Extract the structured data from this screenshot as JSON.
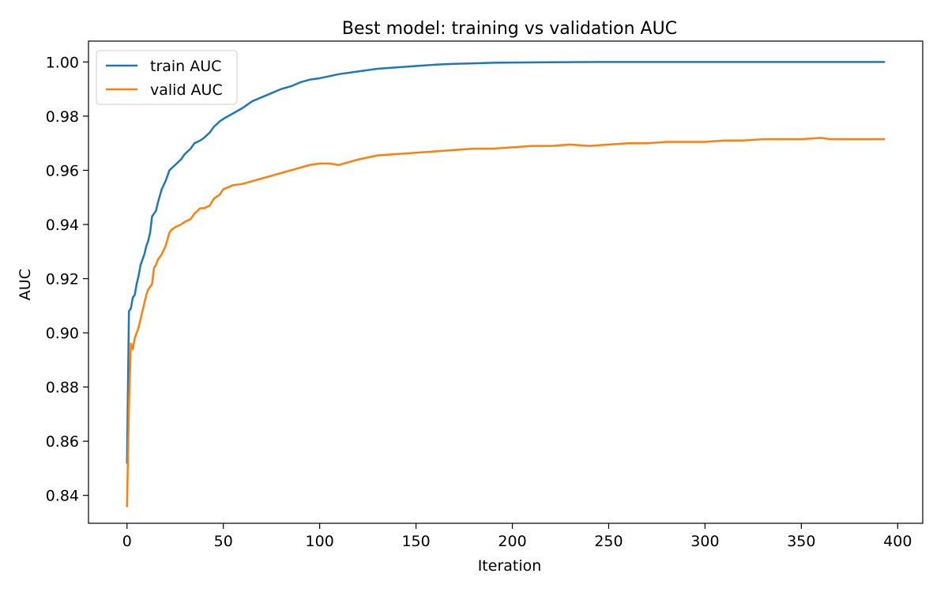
{
  "chart_data": {
    "type": "line",
    "title": "Best model: training vs validation AUC",
    "xlabel": "Iteration",
    "ylabel": "AUC",
    "xlim": [
      -20,
      413
    ],
    "ylim": [
      0.8297,
      1.0077
    ],
    "xticks": [
      0,
      50,
      100,
      150,
      200,
      250,
      300,
      350,
      400
    ],
    "yticks": [
      0.84,
      0.86,
      0.88,
      0.9,
      0.92,
      0.94,
      0.96,
      0.98,
      1.0
    ],
    "xtick_labels": [
      "0",
      "50",
      "100",
      "150",
      "200",
      "250",
      "300",
      "350",
      "400"
    ],
    "ytick_labels": [
      "0.84",
      "0.86",
      "0.88",
      "0.90",
      "0.92",
      "0.94",
      "0.96",
      "0.98",
      "1.00"
    ],
    "grid": false,
    "legend_position": "upper-left",
    "series": [
      {
        "name": "train AUC",
        "color": "#1f77b4",
        "x": [
          0,
          1,
          2,
          3,
          4,
          5,
          6,
          7,
          8,
          9,
          10,
          11,
          12,
          13,
          14,
          15,
          16,
          18,
          20,
          22,
          25,
          28,
          30,
          33,
          35,
          38,
          40,
          43,
          45,
          48,
          50,
          55,
          60,
          65,
          70,
          75,
          80,
          85,
          90,
          95,
          100,
          110,
          120,
          130,
          140,
          150,
          160,
          170,
          180,
          190,
          200,
          220,
          250,
          300,
          350,
          393
        ],
        "y": [
          0.852,
          0.908,
          0.909,
          0.913,
          0.914,
          0.918,
          0.921,
          0.925,
          0.927,
          0.929,
          0.932,
          0.934,
          0.937,
          0.943,
          0.944,
          0.945,
          0.948,
          0.953,
          0.956,
          0.96,
          0.962,
          0.964,
          0.966,
          0.968,
          0.97,
          0.971,
          0.972,
          0.974,
          0.976,
          0.978,
          0.979,
          0.981,
          0.983,
          0.9855,
          0.987,
          0.9885,
          0.99,
          0.991,
          0.9925,
          0.9935,
          0.994,
          0.9955,
          0.9965,
          0.9975,
          0.998,
          0.9985,
          0.999,
          0.9993,
          0.9995,
          0.9997,
          0.9998,
          0.9999,
          1.0,
          1.0,
          1.0,
          1.0
        ]
      },
      {
        "name": "valid AUC",
        "color": "#ff7f0e",
        "x": [
          0,
          1,
          2,
          3,
          4,
          5,
          6,
          7,
          8,
          9,
          10,
          11,
          12,
          13,
          14,
          15,
          16,
          17,
          18,
          20,
          22,
          23,
          25,
          28,
          30,
          33,
          35,
          38,
          40,
          43,
          45,
          48,
          50,
          55,
          60,
          65,
          70,
          75,
          80,
          85,
          90,
          95,
          100,
          105,
          110,
          115,
          120,
          130,
          140,
          150,
          160,
          170,
          180,
          190,
          200,
          210,
          220,
          230,
          240,
          250,
          260,
          270,
          280,
          290,
          300,
          310,
          320,
          330,
          340,
          350,
          360,
          365,
          370,
          380,
          393
        ],
        "y": [
          0.836,
          0.873,
          0.896,
          0.894,
          0.898,
          0.9,
          0.902,
          0.905,
          0.908,
          0.911,
          0.914,
          0.916,
          0.917,
          0.918,
          0.924,
          0.925,
          0.927,
          0.928,
          0.929,
          0.932,
          0.937,
          0.938,
          0.939,
          0.94,
          0.941,
          0.942,
          0.944,
          0.946,
          0.946,
          0.947,
          0.9495,
          0.951,
          0.953,
          0.9545,
          0.955,
          0.956,
          0.957,
          0.958,
          0.959,
          0.96,
          0.961,
          0.962,
          0.9625,
          0.9625,
          0.962,
          0.963,
          0.964,
          0.9655,
          0.966,
          0.9665,
          0.967,
          0.9675,
          0.968,
          0.968,
          0.9685,
          0.969,
          0.969,
          0.9695,
          0.969,
          0.9695,
          0.97,
          0.97,
          0.9705,
          0.9705,
          0.9705,
          0.971,
          0.971,
          0.9715,
          0.9715,
          0.9715,
          0.972,
          0.9715,
          0.9715,
          0.9715,
          0.9715
        ]
      }
    ]
  }
}
